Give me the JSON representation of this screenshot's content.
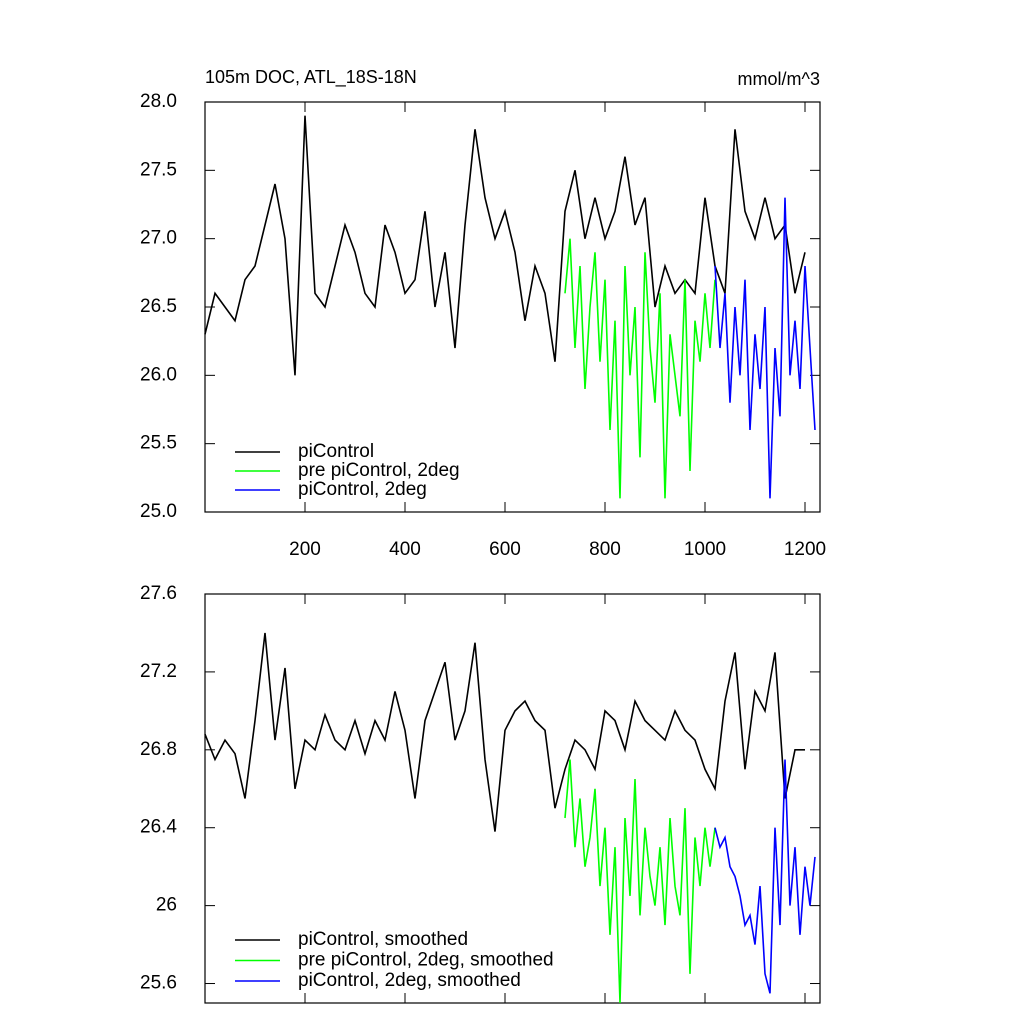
{
  "chart_data": [
    {
      "type": "line",
      "title": "105m DOC, ATL_18S-18N",
      "units": "mmol/m^3",
      "xlim": [
        0,
        1230
      ],
      "xticks": [
        200,
        400,
        600,
        800,
        1000,
        1200
      ],
      "ylim": [
        25,
        28
      ],
      "yticks": [
        {
          "value": 25,
          "label": "25.0"
        },
        {
          "value": 25.5,
          "label": "25.5"
        },
        {
          "value": 26,
          "label": "26.0"
        },
        {
          "value": 26.5,
          "label": "26.5"
        },
        {
          "value": 27,
          "label": "27.0"
        },
        {
          "value": 27.5,
          "label": "27.5"
        },
        {
          "value": 28,
          "label": "28.0"
        }
      ],
      "series": [
        {
          "name": "piControl",
          "color": "#000000",
          "x": [
            0,
            20,
            40,
            60,
            80,
            100,
            120,
            140,
            160,
            180,
            200,
            220,
            240,
            260,
            280,
            300,
            320,
            340,
            360,
            380,
            400,
            420,
            440,
            460,
            480,
            500,
            520,
            540,
            560,
            580,
            600,
            620,
            640,
            660,
            680,
            700,
            720,
            740,
            760,
            780,
            800,
            820,
            840,
            860,
            880,
            900,
            920,
            940,
            960,
            980,
            1000,
            1020,
            1040,
            1060,
            1080,
            1100,
            1120,
            1140,
            1160,
            1180,
            1200
          ],
          "values": [
            26.3,
            26.6,
            26.5,
            26.4,
            26.7,
            26.8,
            27.1,
            27.4,
            27.0,
            26.0,
            27.9,
            26.6,
            26.5,
            26.8,
            27.1,
            26.9,
            26.6,
            26.5,
            27.1,
            26.9,
            26.6,
            26.7,
            27.2,
            26.5,
            26.9,
            26.2,
            27.1,
            27.8,
            27.3,
            27.0,
            27.2,
            26.9,
            26.4,
            26.8,
            26.6,
            26.1,
            27.2,
            27.5,
            27.0,
            27.3,
            27.0,
            27.2,
            27.6,
            27.1,
            27.3,
            26.5,
            26.8,
            26.6,
            26.7,
            26.6,
            27.3,
            26.8,
            26.6,
            27.8,
            27.2,
            27.0,
            27.3,
            27.0,
            27.1,
            26.6,
            26.9
          ]
        },
        {
          "name": "pre piControl, 2deg",
          "color": "#00ff00",
          "x": [
            720,
            730,
            740,
            750,
            760,
            770,
            780,
            790,
            800,
            810,
            820,
            830,
            840,
            850,
            860,
            870,
            880,
            890,
            900,
            910,
            920,
            930,
            940,
            950,
            960,
            970,
            980,
            990,
            1000,
            1010,
            1020
          ],
          "values": [
            26.6,
            27.0,
            26.2,
            26.8,
            25.9,
            26.5,
            26.9,
            26.1,
            26.7,
            25.6,
            26.4,
            25.1,
            26.8,
            26.0,
            26.5,
            25.4,
            26.9,
            26.2,
            25.8,
            26.6,
            25.1,
            26.3,
            26.0,
            25.7,
            26.7,
            25.3,
            26.4,
            26.1,
            26.6,
            26.2,
            26.7
          ]
        },
        {
          "name": "piControl, 2deg",
          "color": "#0000ff",
          "x": [
            1020,
            1030,
            1040,
            1050,
            1060,
            1070,
            1080,
            1090,
            1100,
            1110,
            1120,
            1130,
            1140,
            1150,
            1160,
            1170,
            1180,
            1190,
            1200,
            1210,
            1220
          ],
          "values": [
            26.8,
            26.2,
            26.6,
            25.8,
            26.5,
            26.0,
            26.7,
            25.6,
            26.3,
            25.9,
            26.5,
            25.1,
            26.2,
            25.7,
            27.3,
            26.0,
            26.4,
            25.9,
            26.8,
            26.2,
            25.6
          ]
        }
      ]
    },
    {
      "type": "line",
      "xlim": [
        0,
        1230
      ],
      "xticks": [
        200,
        400,
        600,
        800,
        1000,
        1200
      ],
      "ylim": [
        25.5,
        27.6
      ],
      "yticks": [
        25.6,
        26.0,
        26.4,
        26.8,
        27.2,
        27.6
      ],
      "series": [
        {
          "name": "piControl, smoothed",
          "color": "#000000",
          "x": [
            0,
            20,
            40,
            60,
            80,
            100,
            120,
            140,
            160,
            180,
            200,
            220,
            240,
            260,
            280,
            300,
            320,
            340,
            360,
            380,
            400,
            420,
            440,
            460,
            480,
            500,
            520,
            540,
            560,
            580,
            600,
            620,
            640,
            660,
            680,
            700,
            720,
            740,
            760,
            780,
            800,
            820,
            840,
            860,
            880,
            900,
            920,
            940,
            960,
            980,
            1000,
            1020,
            1040,
            1060,
            1080,
            1100,
            1120,
            1140,
            1160,
            1180,
            1200
          ],
          "values": [
            26.88,
            26.75,
            26.85,
            26.78,
            26.55,
            26.95,
            27.4,
            26.85,
            27.22,
            26.6,
            26.85,
            26.8,
            26.98,
            26.85,
            26.8,
            26.95,
            26.78,
            26.95,
            26.85,
            27.1,
            26.9,
            26.55,
            26.95,
            27.1,
            27.25,
            26.85,
            27.0,
            27.35,
            26.75,
            26.38,
            26.9,
            27.0,
            27.05,
            26.95,
            26.9,
            26.5,
            26.7,
            26.85,
            26.8,
            26.7,
            27.0,
            26.95,
            26.8,
            27.05,
            26.95,
            26.9,
            26.85,
            27.0,
            26.9,
            26.85,
            26.7,
            26.6,
            27.05,
            27.3,
            26.7,
            27.1,
            27.0,
            27.3,
            26.55,
            26.8,
            26.8
          ]
        },
        {
          "name": "pre piControl, 2deg, smoothed",
          "color": "#00ff00",
          "x": [
            720,
            730,
            740,
            750,
            760,
            770,
            780,
            790,
            800,
            810,
            820,
            830,
            840,
            850,
            860,
            870,
            880,
            890,
            900,
            910,
            920,
            930,
            940,
            950,
            960,
            970,
            980,
            990,
            1000,
            1010,
            1020
          ],
          "values": [
            26.45,
            26.75,
            26.3,
            26.55,
            26.2,
            26.35,
            26.6,
            26.1,
            26.4,
            25.85,
            26.3,
            25.5,
            26.45,
            26.05,
            26.65,
            25.95,
            26.4,
            26.15,
            26.0,
            26.3,
            25.9,
            26.45,
            26.1,
            25.95,
            26.5,
            25.65,
            26.35,
            26.1,
            26.4,
            26.2,
            26.4
          ]
        },
        {
          "name": "piControl, 2deg, smoothed",
          "color": "#0000ff",
          "x": [
            1020,
            1030,
            1040,
            1050,
            1060,
            1070,
            1080,
            1090,
            1100,
            1110,
            1120,
            1130,
            1140,
            1150,
            1160,
            1170,
            1180,
            1190,
            1200,
            1210,
            1220
          ],
          "values": [
            26.4,
            26.3,
            26.35,
            26.2,
            26.15,
            26.05,
            25.9,
            25.95,
            25.8,
            26.1,
            25.65,
            25.55,
            26.4,
            25.9,
            26.75,
            26.0,
            26.3,
            25.85,
            26.2,
            26.0,
            26.25
          ]
        }
      ]
    }
  ]
}
